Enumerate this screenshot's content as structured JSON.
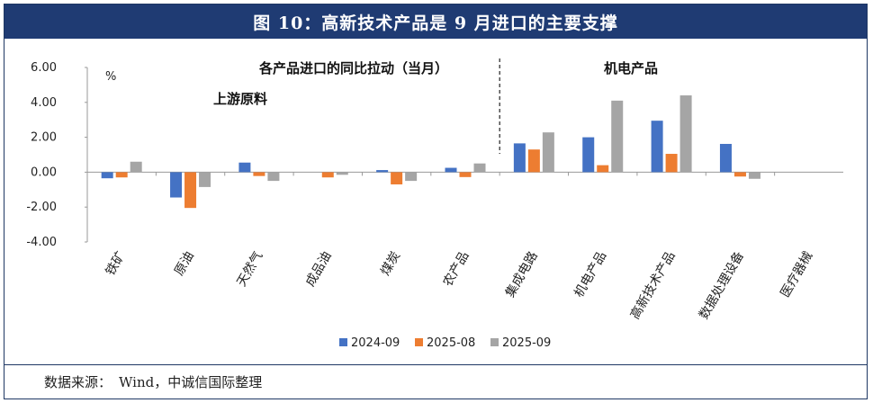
{
  "header": {
    "title": "图 10：高新技术产品是 9 月进口的主要支撑"
  },
  "footer": {
    "source_label": "数据来源：",
    "source_value": "Wind，中诚信国际整理"
  },
  "chart_data": {
    "type": "bar",
    "title": "各产品进口的同比拉动（当月）",
    "ylabel": "%",
    "ylim": [
      -4,
      6
    ],
    "yticks": [
      "-4.00",
      "-2.00",
      "0.00",
      "2.00",
      "4.00",
      "6.00"
    ],
    "ytick_values": [
      -4,
      -2,
      0,
      2,
      4,
      6
    ],
    "categories": [
      "铁矿",
      "原油",
      "天然气",
      "成品油",
      "煤炭",
      "农产品",
      "集成电路",
      "机电产品",
      "高新技术产品",
      "数据处理设备",
      "医疗器械"
    ],
    "series": [
      {
        "name": "2024-09",
        "color": "#4472c4",
        "values": [
          -0.35,
          -1.45,
          0.55,
          0.0,
          0.12,
          0.25,
          1.65,
          2.0,
          2.95,
          1.62,
          0.0
        ]
      },
      {
        "name": "2025-08",
        "color": "#ed7d31",
        "values": [
          -0.3,
          -2.05,
          -0.22,
          -0.3,
          -0.7,
          -0.28,
          1.3,
          0.4,
          1.05,
          -0.25,
          0.0
        ]
      },
      {
        "name": "2025-09",
        "color": "#a5a5a5",
        "values": [
          0.6,
          -0.85,
          -0.5,
          -0.15,
          -0.5,
          0.5,
          2.28,
          4.1,
          4.4,
          -0.38,
          0.0
        ]
      }
    ],
    "annotations": [
      "上游原料",
      "机电产品"
    ],
    "divider": "dashed line between 农产品 and 集成电路",
    "legend_position": "bottom",
    "grid": false
  }
}
